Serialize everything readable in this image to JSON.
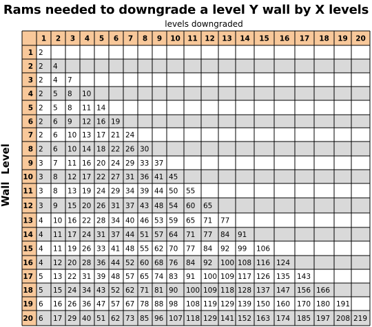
{
  "chart_data": {
    "type": "table",
    "title": "Rams needed to downgrade a level Y wall by X levels",
    "xlabel": "levels downgraded",
    "ylabel": "Wall  Level",
    "columns": [
      1,
      2,
      3,
      4,
      5,
      6,
      7,
      8,
      9,
      10,
      11,
      12,
      13,
      14,
      15,
      16,
      17,
      18,
      19,
      20
    ],
    "rows": [
      {
        "level": 1,
        "values": [
          2
        ]
      },
      {
        "level": 2,
        "values": [
          2,
          4
        ]
      },
      {
        "level": 3,
        "values": [
          2,
          4,
          7
        ]
      },
      {
        "level": 4,
        "values": [
          2,
          5,
          8,
          10
        ]
      },
      {
        "level": 5,
        "values": [
          2,
          5,
          8,
          11,
          14
        ]
      },
      {
        "level": 6,
        "values": [
          2,
          6,
          9,
          12,
          16,
          19
        ]
      },
      {
        "level": 7,
        "values": [
          2,
          6,
          10,
          13,
          17,
          21,
          24
        ]
      },
      {
        "level": 8,
        "values": [
          2,
          6,
          10,
          14,
          18,
          22,
          26,
          30
        ]
      },
      {
        "level": 9,
        "values": [
          3,
          7,
          11,
          16,
          20,
          24,
          29,
          33,
          37
        ]
      },
      {
        "level": 10,
        "values": [
          3,
          8,
          12,
          17,
          22,
          27,
          31,
          36,
          41,
          45
        ]
      },
      {
        "level": 11,
        "values": [
          3,
          8,
          13,
          19,
          24,
          29,
          34,
          39,
          44,
          50,
          55
        ]
      },
      {
        "level": 12,
        "values": [
          3,
          9,
          15,
          20,
          26,
          31,
          37,
          43,
          48,
          54,
          60,
          65
        ]
      },
      {
        "level": 13,
        "values": [
          4,
          10,
          16,
          22,
          28,
          34,
          40,
          46,
          53,
          59,
          65,
          71,
          77
        ]
      },
      {
        "level": 14,
        "values": [
          4,
          11,
          17,
          24,
          31,
          37,
          44,
          51,
          57,
          64,
          71,
          77,
          84,
          91
        ]
      },
      {
        "level": 15,
        "values": [
          4,
          11,
          19,
          26,
          33,
          41,
          48,
          55,
          62,
          70,
          77,
          84,
          92,
          99,
          106
        ]
      },
      {
        "level": 16,
        "values": [
          4,
          12,
          20,
          28,
          36,
          44,
          52,
          60,
          68,
          76,
          84,
          92,
          100,
          108,
          116,
          124
        ]
      },
      {
        "level": 17,
        "values": [
          5,
          13,
          22,
          31,
          39,
          48,
          57,
          65,
          74,
          83,
          91,
          100,
          109,
          117,
          126,
          135,
          143
        ]
      },
      {
        "level": 18,
        "values": [
          5,
          15,
          24,
          34,
          43,
          52,
          62,
          71,
          81,
          90,
          100,
          109,
          118,
          128,
          137,
          147,
          156,
          166
        ]
      },
      {
        "level": 19,
        "values": [
          6,
          16,
          26,
          36,
          47,
          57,
          67,
          78,
          88,
          98,
          108,
          119,
          129,
          139,
          150,
          160,
          170,
          180,
          191
        ]
      },
      {
        "level": 20,
        "values": [
          6,
          17,
          29,
          40,
          51,
          62,
          73,
          85,
          96,
          107,
          118,
          129,
          141,
          152,
          163,
          174,
          185,
          197,
          208,
          219
        ]
      }
    ]
  },
  "colors": {
    "header_fill": "#f8c89a",
    "shaded_row_fill": "#d9d9d9",
    "white_fill": "#ffffff",
    "grid_line": "#000000"
  }
}
